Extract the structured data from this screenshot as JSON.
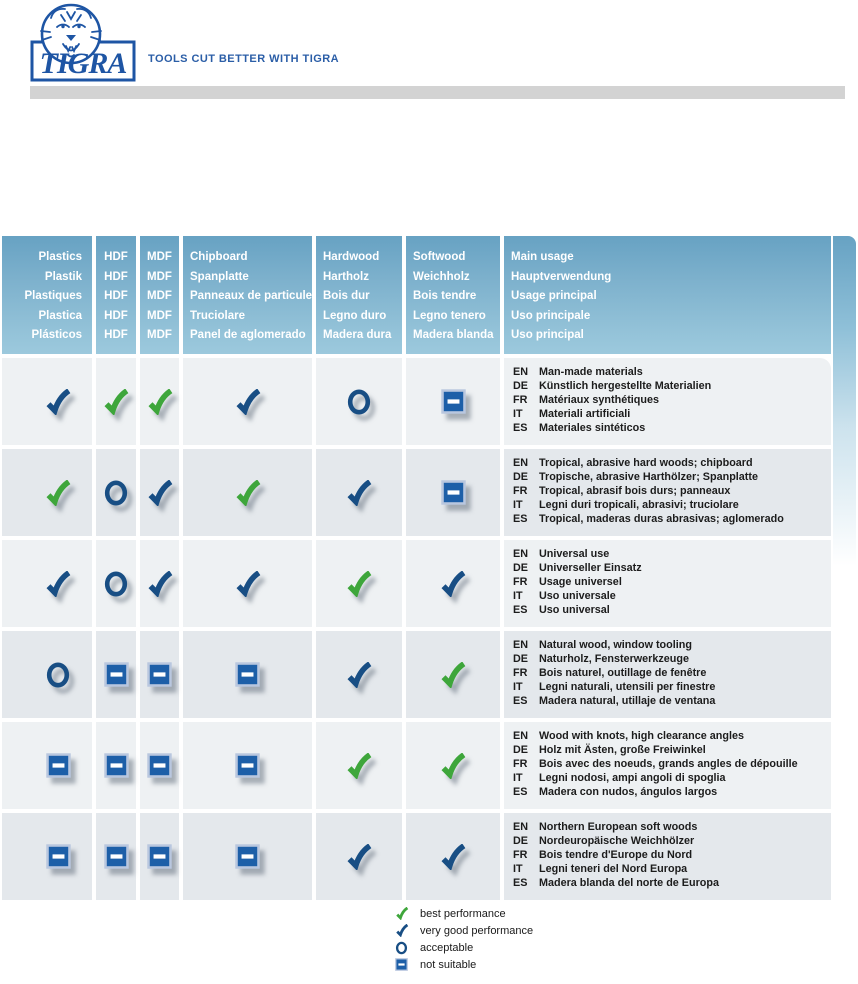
{
  "brand": {
    "logo_text": "TIGRA",
    "tagline": "TOOLS CUT BETTER WITH TIGRA"
  },
  "colors": {
    "logo_blue": "#1e55a4",
    "tagline_blue": "#2b5ea7",
    "bar_gray": "#d3d3d3",
    "header_blue_top": "#67a2c3",
    "header_blue_bottom": "#9cc9dd",
    "row_light": "#eef1f3",
    "row_dark": "#e4e8ec",
    "check_green": "#3ea63b",
    "check_blue": "#184e84",
    "square_blue": "#1d5fa8",
    "square_border": "#b9c7df"
  },
  "table": {
    "header_columns": [
      {
        "id": "plastics",
        "align": "right",
        "lines": [
          "Plastics",
          "Plastik",
          "Plastiques",
          "Plastica",
          "Plásticos"
        ]
      },
      {
        "id": "hdf",
        "align": "center",
        "lines": [
          "HDF",
          "HDF",
          "HDF",
          "HDF",
          "HDF"
        ]
      },
      {
        "id": "mdf",
        "align": "center",
        "lines": [
          "MDF",
          "MDF",
          "MDF",
          "MDF",
          "MDF"
        ]
      },
      {
        "id": "chipboard",
        "align": "left",
        "lines": [
          "Chipboard",
          "Spanplatte",
          "Panneaux de particule",
          "Truciolare",
          "Panel de aglomerado"
        ]
      },
      {
        "id": "hardwood",
        "align": "left",
        "lines": [
          "Hardwood",
          "Hartholz",
          "Bois dur",
          "Legno duro",
          "Madera dura"
        ]
      },
      {
        "id": "softwood",
        "align": "left",
        "lines": [
          "Softwood",
          "Weichholz",
          "Bois tendre",
          "Legno tenero",
          "Madera blanda"
        ]
      },
      {
        "id": "main-usage",
        "align": "left",
        "lines": [
          "Main usage",
          "Hauptverwendung",
          "Usage principal",
          "Uso principale",
          "Uso principal"
        ]
      }
    ],
    "rows": [
      {
        "ratings": [
          "very_good",
          "best",
          "best",
          "very_good",
          "acceptable",
          "not_suitable"
        ],
        "usage": [
          {
            "code": "EN",
            "text": "Man-made materials"
          },
          {
            "code": "DE",
            "text": "Künstlich hergestellte Materialien"
          },
          {
            "code": "FR",
            "text": "Matériaux synthétiques"
          },
          {
            "code": "IT",
            "text": "Materiali artificiali"
          },
          {
            "code": "ES",
            "text": "Materiales sintéticos"
          }
        ]
      },
      {
        "ratings": [
          "best",
          "acceptable",
          "very_good",
          "best",
          "very_good",
          "not_suitable"
        ],
        "usage": [
          {
            "code": "EN",
            "text": "Tropical, abrasive hard woods; chipboard"
          },
          {
            "code": "DE",
            "text": "Tropische, abrasive Harthölzer; Spanplatte"
          },
          {
            "code": "FR",
            "text": "Tropical, abrasif bois durs; panneaux"
          },
          {
            "code": "IT",
            "text": "Legni duri tropicali, abrasivi; truciolare"
          },
          {
            "code": "ES",
            "text": "Tropical, maderas duras abrasivas; aglomerado"
          }
        ]
      },
      {
        "ratings": [
          "very_good",
          "acceptable",
          "very_good",
          "very_good",
          "best",
          "very_good"
        ],
        "usage": [
          {
            "code": "EN",
            "text": "Universal use"
          },
          {
            "code": "DE",
            "text": "Universeller Einsatz"
          },
          {
            "code": "FR",
            "text": "Usage universel"
          },
          {
            "code": "IT",
            "text": "Uso universale"
          },
          {
            "code": "ES",
            "text": "Uso universal"
          }
        ]
      },
      {
        "ratings": [
          "acceptable",
          "not_suitable",
          "not_suitable",
          "not_suitable",
          "very_good",
          "best"
        ],
        "usage": [
          {
            "code": "EN",
            "text": "Natural wood, window tooling"
          },
          {
            "code": "DE",
            "text": "Naturholz, Fensterwerkzeuge"
          },
          {
            "code": "FR",
            "text": "Bois naturel, outillage de fenêtre"
          },
          {
            "code": "IT",
            "text": "Legni naturali, utensili per finestre"
          },
          {
            "code": "ES",
            "text": "Madera natural, utillaje de ventana"
          }
        ]
      },
      {
        "ratings": [
          "not_suitable",
          "not_suitable",
          "not_suitable",
          "not_suitable",
          "best",
          "best"
        ],
        "usage": [
          {
            "code": "EN",
            "text": "Wood with knots, high clearance angles"
          },
          {
            "code": "DE",
            "text": "Holz mit Ästen, große Freiwinkel"
          },
          {
            "code": "FR",
            "text": "Bois avec des noeuds, grands angles de dépouille"
          },
          {
            "code": "IT",
            "text": "Legni nodosi, ampi angoli di spoglia"
          },
          {
            "code": "ES",
            "text": "Madera con nudos, ángulos largos"
          }
        ]
      },
      {
        "ratings": [
          "not_suitable",
          "not_suitable",
          "not_suitable",
          "not_suitable",
          "very_good",
          "very_good"
        ],
        "usage": [
          {
            "code": "EN",
            "text": "Northern European soft woods"
          },
          {
            "code": "DE",
            "text": "Nordeuropäische Weichhölzer"
          },
          {
            "code": "FR",
            "text": "Bois tendre d'Europe du Nord"
          },
          {
            "code": "IT",
            "text": "Legni teneri del Nord Europa"
          },
          {
            "code": "ES",
            "text": "Madera blanda del norte de Europa"
          }
        ]
      }
    ]
  },
  "legend": [
    {
      "rating": "best",
      "label": "best performance"
    },
    {
      "rating": "very_good",
      "label": "very good performance"
    },
    {
      "rating": "acceptable",
      "label": "acceptable"
    },
    {
      "rating": "not_suitable",
      "label": "not suitable"
    }
  ]
}
